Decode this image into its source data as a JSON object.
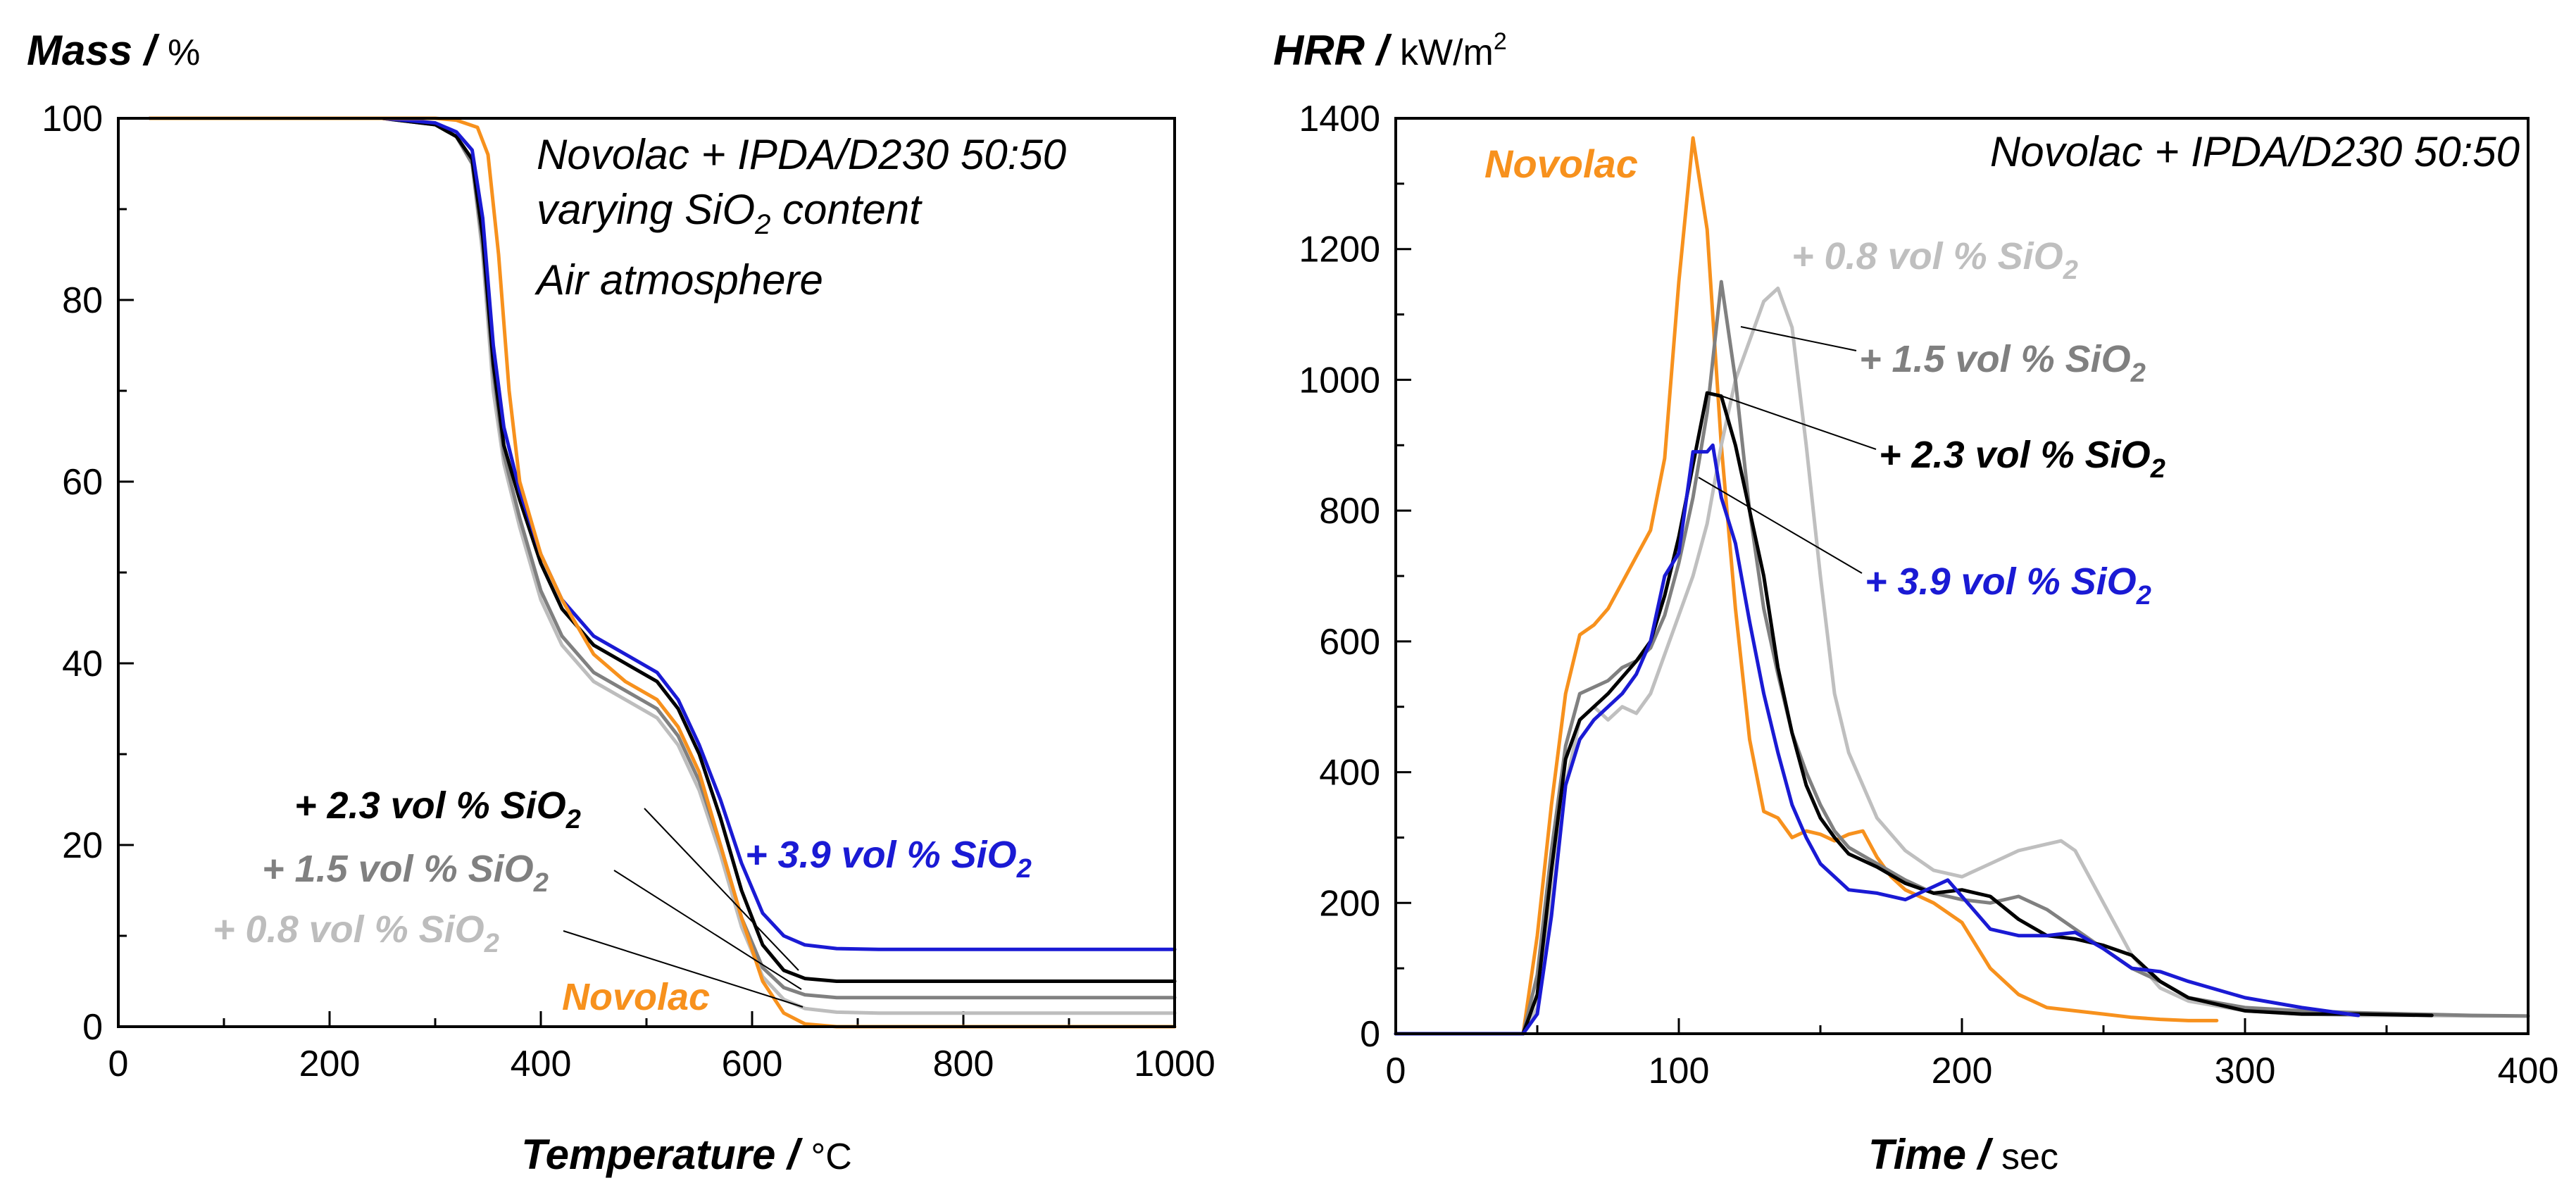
{
  "chart_data": [
    {
      "type": "line",
      "ylabel_main": "Mass",
      "ylabel_unit": "%",
      "xlabel_main": "Temperature",
      "xlabel_unit": "°C",
      "annotation_lines": [
        "Novolac + IPDA/D230 50:50",
        "varying SiO",
        "2",
        " content",
        "Air atmosphere"
      ],
      "xlim": [
        0,
        1000
      ],
      "ylim": [
        0,
        100
      ],
      "xticks": [
        0,
        200,
        400,
        600,
        800,
        1000
      ],
      "yticks": [
        0,
        20,
        40,
        60,
        80,
        100
      ],
      "series": [
        {
          "name": "+ 0.8 vol % SiO2",
          "label": "+ 0.8 vol % SiO",
          "sub": "2",
          "color": "#BDBDBD",
          "x": [
            30,
            250,
            300,
            320,
            335,
            345,
            355,
            365,
            380,
            400,
            420,
            450,
            480,
            510,
            530,
            550,
            570,
            590,
            610,
            630,
            650,
            680,
            720,
            1000
          ],
          "y": [
            100,
            100,
            99.3,
            98,
            95,
            85,
            70,
            62,
            55,
            47,
            42,
            38,
            36,
            34,
            31,
            26,
            19,
            11,
            5.5,
            3,
            2,
            1.6,
            1.5,
            1.5
          ]
        },
        {
          "name": "+ 1.5 vol % SiO2",
          "label": "+ 1.5 vol % SiO",
          "sub": "2",
          "color": "#808080",
          "x": [
            30,
            250,
            300,
            320,
            335,
            345,
            355,
            365,
            380,
            400,
            420,
            450,
            480,
            510,
            530,
            550,
            570,
            590,
            610,
            630,
            650,
            680,
            720,
            1000
          ],
          "y": [
            100,
            100,
            99.3,
            98,
            95,
            86,
            72,
            63,
            56,
            48,
            43,
            39,
            37,
            35,
            32,
            27,
            20,
            12,
            6.5,
            4.3,
            3.5,
            3.2,
            3.2,
            3.2
          ]
        },
        {
          "name": "+ 2.3 vol % SiO2",
          "label": "+ 2.3 vol % SiO",
          "sub": "2",
          "color": "#000000",
          "x": [
            30,
            250,
            300,
            320,
            335,
            345,
            355,
            365,
            380,
            400,
            420,
            450,
            480,
            510,
            530,
            550,
            570,
            590,
            610,
            630,
            650,
            680,
            720,
            1000
          ],
          "y": [
            100,
            100,
            99.3,
            98,
            95.5,
            87,
            73,
            64,
            58,
            51,
            46,
            42,
            40,
            38,
            35,
            30,
            23,
            15,
            9,
            6.2,
            5.3,
            5,
            5,
            5
          ]
        },
        {
          "name": "+ 3.9 vol % SiO2",
          "label": "+ 3.9 vol % SiO",
          "sub": "2",
          "color": "#1A1AD4",
          "x": [
            30,
            250,
            300,
            320,
            335,
            345,
            355,
            365,
            380,
            400,
            420,
            450,
            480,
            510,
            530,
            550,
            570,
            590,
            610,
            630,
            650,
            680,
            720,
            1000
          ],
          "y": [
            100,
            100,
            99.5,
            98.5,
            96.5,
            89,
            75,
            66,
            59,
            52,
            47,
            43,
            41,
            39,
            36,
            31,
            25,
            18,
            12.5,
            10,
            9,
            8.6,
            8.5,
            8.5
          ]
        },
        {
          "name": "Novolac",
          "label": "Novolac",
          "sub": "",
          "color": "#F7911D",
          "x": [
            30,
            250,
            300,
            320,
            340,
            350,
            360,
            370,
            380,
            400,
            420,
            450,
            480,
            510,
            530,
            550,
            570,
            590,
            610,
            630,
            650,
            680,
            720,
            1000
          ],
          "y": [
            100,
            100,
            100,
            99.8,
            99,
            96,
            85,
            70,
            60,
            52,
            47,
            41,
            38,
            36,
            33,
            28,
            20,
            12,
            5,
            1.5,
            0.3,
            0,
            0,
            0
          ]
        }
      ]
    },
    {
      "type": "line",
      "ylabel_main": "HRR",
      "ylabel_unit": "kW/m",
      "ylabel_sup": "2",
      "xlabel_main": "Time",
      "xlabel_unit": "sec",
      "annotation_lines": [
        "Novolac + IPDA/D230 50:50"
      ],
      "xlim": [
        0,
        400
      ],
      "ylim": [
        0,
        1400
      ],
      "xticks": [
        0,
        100,
        200,
        300,
        400
      ],
      "yticks": [
        0,
        200,
        400,
        600,
        800,
        1000,
        1200,
        1400
      ],
      "series": [
        {
          "name": "Novolac",
          "label": "Novolac",
          "sub": "",
          "color": "#F7911D",
          "x": [
            0,
            45,
            50,
            55,
            60,
            65,
            70,
            75,
            80,
            85,
            90,
            95,
            100,
            105,
            110,
            115,
            120,
            125,
            130,
            135,
            140,
            145,
            150,
            155,
            160,
            165,
            170,
            175,
            180,
            190,
            200,
            210,
            220,
            230,
            240,
            250,
            260,
            270,
            280,
            290
          ],
          "y": [
            0,
            0,
            150,
            350,
            520,
            610,
            625,
            650,
            690,
            730,
            770,
            880,
            1150,
            1370,
            1230,
            900,
            650,
            450,
            340,
            330,
            300,
            310,
            305,
            295,
            305,
            310,
            270,
            240,
            220,
            200,
            170,
            100,
            60,
            40,
            35,
            30,
            25,
            22,
            20,
            20
          ]
        },
        {
          "name": "+ 0.8 vol % SiO2",
          "label": "+ 0.8 vol % SiO",
          "sub": "2",
          "color": "#BFBFBF",
          "x": [
            0,
            45,
            50,
            55,
            60,
            65,
            70,
            75,
            80,
            85,
            90,
            95,
            100,
            105,
            110,
            115,
            120,
            125,
            130,
            135,
            140,
            145,
            150,
            155,
            160,
            170,
            180,
            190,
            200,
            210,
            220,
            230,
            235,
            240,
            250,
            260,
            270,
            280,
            300,
            320,
            340,
            360,
            380,
            400
          ],
          "y": [
            0,
            0,
            40,
            200,
            380,
            480,
            500,
            480,
            500,
            490,
            520,
            580,
            640,
            700,
            780,
            900,
            1000,
            1060,
            1120,
            1140,
            1080,
            900,
            700,
            520,
            430,
            330,
            280,
            250,
            240,
            260,
            280,
            290,
            295,
            280,
            200,
            120,
            70,
            50,
            35,
            30,
            28,
            28,
            27,
            27
          ]
        },
        {
          "name": "+ 1.5 vol % SiO2",
          "label": "+ 1.5 vol % SiO",
          "sub": "2",
          "color": "#808080",
          "x": [
            0,
            45,
            50,
            55,
            60,
            65,
            70,
            75,
            80,
            85,
            90,
            95,
            100,
            105,
            110,
            115,
            120,
            125,
            130,
            135,
            140,
            145,
            150,
            155,
            160,
            170,
            180,
            190,
            200,
            210,
            220,
            230,
            240,
            250,
            260,
            270,
            280,
            300,
            320,
            340,
            360,
            380,
            400
          ],
          "y": [
            0,
            0,
            90,
            280,
            440,
            520,
            530,
            540,
            560,
            570,
            590,
            640,
            720,
            820,
            950,
            1150,
            1000,
            800,
            650,
            550,
            460,
            400,
            350,
            310,
            285,
            260,
            235,
            215,
            205,
            200,
            210,
            190,
            160,
            130,
            100,
            80,
            55,
            40,
            35,
            32,
            30,
            28,
            27
          ]
        },
        {
          "name": "+ 2.3 vol % SiO2",
          "label": "+ 2.3 vol % SiO",
          "sub": "2",
          "color": "#000000",
          "x": [
            0,
            45,
            50,
            55,
            60,
            65,
            70,
            75,
            80,
            85,
            90,
            95,
            100,
            105,
            110,
            115,
            120,
            125,
            130,
            135,
            140,
            145,
            150,
            155,
            160,
            170,
            180,
            190,
            200,
            210,
            220,
            230,
            240,
            250,
            260,
            270,
            280,
            300,
            320,
            340,
            366
          ],
          "y": [
            0,
            0,
            60,
            250,
            420,
            480,
            500,
            520,
            545,
            570,
            600,
            670,
            760,
            870,
            980,
            975,
            900,
            800,
            700,
            560,
            460,
            380,
            330,
            300,
            275,
            255,
            230,
            215,
            220,
            210,
            175,
            150,
            145,
            135,
            120,
            80,
            55,
            35,
            30,
            30,
            28
          ]
        },
        {
          "name": "+ 3.9 vol % SiO2",
          "label": "+ 3.9 vol % SiO",
          "sub": "2",
          "color": "#1A1AD4",
          "x": [
            0,
            45,
            50,
            55,
            60,
            65,
            70,
            75,
            80,
            85,
            90,
            95,
            100,
            105,
            110,
            112,
            115,
            120,
            125,
            130,
            135,
            140,
            145,
            150,
            155,
            160,
            170,
            180,
            190,
            195,
            200,
            210,
            220,
            230,
            240,
            250,
            260,
            270,
            280,
            300,
            320,
            340
          ],
          "y": [
            0,
            0,
            30,
            180,
            380,
            450,
            480,
            500,
            520,
            550,
            600,
            700,
            735,
            890,
            890,
            900,
            820,
            750,
            630,
            520,
            430,
            350,
            300,
            260,
            240,
            220,
            215,
            205,
            225,
            235,
            210,
            160,
            150,
            150,
            155,
            130,
            100,
            95,
            80,
            55,
            40,
            28
          ]
        }
      ]
    }
  ]
}
